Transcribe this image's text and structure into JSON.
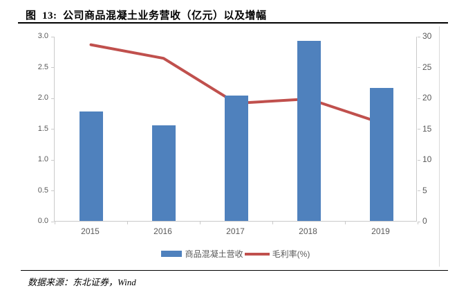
{
  "figure": {
    "title": "图  13:  公司商品混凝土业务营收（亿元）以及增幅",
    "source": "数据来源：东北证券，Wind"
  },
  "chart_data": {
    "type": "bar+line",
    "title": "公司商品混凝土业务营收（亿元）以及增幅",
    "categories": [
      "2015",
      "2016",
      "2017",
      "2018",
      "2019"
    ],
    "series": [
      {
        "name": "商品混凝土营收",
        "type": "bar",
        "axis": "left",
        "color": "#4f81bd",
        "values": [
          1.78,
          1.55,
          2.03,
          2.92,
          2.16
        ]
      },
      {
        "name": "毛利率(%)",
        "type": "line",
        "axis": "right",
        "color": "#c0504d",
        "values": [
          28.7,
          26.5,
          19.2,
          19.9,
          16.0
        ]
      }
    ],
    "left_axis": {
      "min": 0,
      "max": 3,
      "ticks": [
        "0.0",
        "0.5",
        "1.0",
        "1.5",
        "2.0",
        "2.5",
        "3.0"
      ]
    },
    "right_axis": {
      "min": 0,
      "max": 30,
      "ticks": [
        "0",
        "5",
        "10",
        "15",
        "20",
        "25",
        "30"
      ]
    },
    "xlabel": "",
    "ylabel": "",
    "grid": false,
    "legend_position": "bottom"
  }
}
